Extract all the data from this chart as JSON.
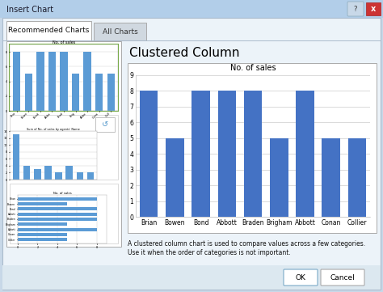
{
  "title": "Insert Chart",
  "tab1": "Recommended Charts",
  "tab2": "All Charts",
  "chart_type_label": "Clustered Column",
  "chart_title": "No. of sales",
  "categories": [
    "Brian",
    "Bowen",
    "Bond",
    "Abbott",
    "Braden",
    "Brigham",
    "Abbott",
    "Conan",
    "Collier"
  ],
  "values": [
    8,
    5,
    8,
    8,
    8,
    5,
    8,
    5,
    5
  ],
  "bar_color": "#4472C4",
  "ylim": [
    0,
    9
  ],
  "yticks": [
    0,
    1,
    2,
    3,
    4,
    5,
    6,
    7,
    8,
    9
  ],
  "description_line1": "A clustered column chart is used to compare values across a few categories.",
  "description_line2": "Use it when the order of categories is not important.",
  "dialog_bg": "#ECF4FB",
  "title_bar_bg": "#6A9FD0",
  "grid_color": "#CCCCCC",
  "chart_border": "#AAAAAA",
  "preview_selected_border": "#6AAA30",
  "preview_selected_bg": "#EAF5E0",
  "mini_bar_color": "#5B9BD5",
  "mini2_vals": [
    13,
    4,
    3,
    4,
    2,
    4,
    2,
    2
  ],
  "hbar_labels": [
    "Collier",
    "Conan",
    "Abbott",
    "Brigham",
    "Braden",
    "Abbott",
    "Bond",
    "Bowen",
    "Brian"
  ],
  "hbar_vals": [
    5,
    5,
    8,
    5,
    8,
    8,
    8,
    5,
    8
  ],
  "mini2_title": "Sum of No. of sales by agents' Name"
}
